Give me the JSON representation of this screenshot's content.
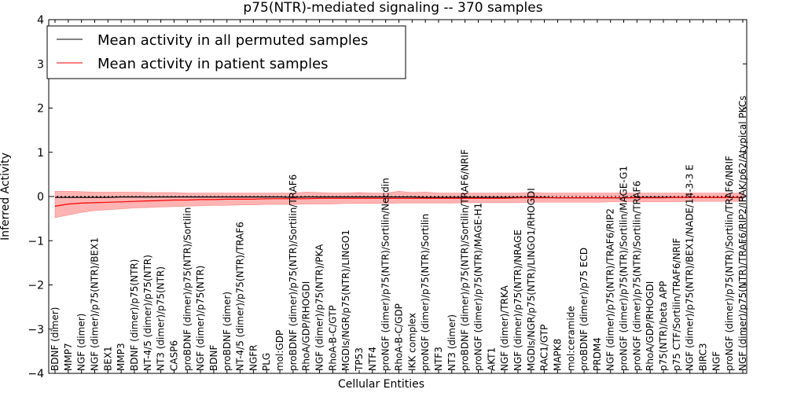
{
  "chart_data": {
    "type": "line",
    "title": "p75(NTR)-mediated signaling -- 370 samples",
    "xlabel": "Cellular Entities",
    "ylabel": "Inferred Activity",
    "ylim": [
      -4,
      4
    ],
    "yticks": [
      -4,
      -3,
      -2,
      -1,
      0,
      1,
      2,
      3,
      4
    ],
    "reference_line": 0,
    "legend_position": "top-left",
    "categories": [
      "BDNF (dimer)",
      "MMP7",
      "NGF (dimer)",
      "NGF (dimer)/p75(NTR)/BEX1",
      "BEX1",
      "MMP3",
      "BDNF (dimer)/p75(NTR)",
      "NT-4/5 (dimer)/p75(NTR)",
      "NT3 (dimer)/p75(NTR)",
      "CASP6",
      "proBDNF (dimer)/p75(NTR)/Sortilin",
      "NGF (dimer)/p75(NTR)",
      "BDNF",
      "proBDNF (dimer)",
      "NT-4/5 (dimer)/p75(NTR)/TRAF6",
      "NGFR",
      "PLG",
      "mol:GDP",
      "proBDNF (dimer)/p75(NTR)/Sortilin/TRAF6",
      "RhoA/GDP/RHOGDI",
      "NGF (dimer)/p75(NTR)/PKA",
      "RhoA-B-C/GTP",
      "MGDIs/NGR/p75(NTR)/LINGO1",
      "TP53",
      "NTF4",
      "proNGF (dimer)/p75(NTR)/Sortilin/Necdin",
      "RhoA-B-C/GDP",
      "IKK complex",
      "proNGF (dimer)/p75(NTR)/Sortilin",
      "NTF3",
      "NT3 (dimer)",
      "proBDNF (dimer)/p75(NTR)/Sortilin/TRAF6/NRIF",
      "proNGF (dimer)/p75(NTR)/MAGE-H1",
      "AKT1",
      "NGF (dimer)/TRKA",
      "NGF (dimer)/p75(NTR)/NRAGE",
      "MGDIs/NGR/p75(NTR)/LINGO1/RHOGDI",
      "RAC1/GTP",
      "MAPK8",
      "mol:ceramide",
      "proBDNF (dimer)/p75 ECD",
      "PRDM4",
      "NGF (dimer)/p75(NTR)/TRAF6/RIP2",
      "proNGF (dimer)/p75(NTR)/Sortilin/MAGE-G1",
      "proNGF (dimer)/p75(NTR)/Sortilin/TRAF6",
      "RhoA/GDP/RHOGDI",
      "p75(NTR)/beta APP",
      "p75 CTF/Sortilin/TRAF6/NRIF",
      "NGF (dimer)/p75(NTR)/BEX1/NADE/14-3-3 E",
      "BIRC3",
      "NGF",
      "proNGF (dimer)/p75(NTR)/Sortilin/TRAF6/NRIF",
      "NGF (dimer)/p75(NTR)/TRAF6/RIP2/IRAK/p62/Atypical PKCs"
    ],
    "series": [
      {
        "name": "Mean activity in all permuted samples",
        "color": "#000000",
        "values": [
          -0.02,
          -0.02,
          -0.02,
          -0.02,
          -0.02,
          -0.01,
          -0.01,
          -0.01,
          -0.01,
          -0.01,
          -0.01,
          -0.01,
          -0.01,
          -0.01,
          -0.01,
          -0.01,
          -0.01,
          -0.01,
          -0.02,
          -0.01,
          -0.01,
          -0.01,
          -0.01,
          -0.01,
          -0.01,
          -0.01,
          -0.01,
          -0.01,
          -0.02,
          -0.02,
          -0.02,
          -0.02,
          -0.02,
          -0.02,
          -0.02,
          -0.02,
          -0.02,
          -0.02,
          -0.03,
          -0.03,
          -0.03,
          -0.03,
          -0.03,
          -0.03,
          -0.02,
          -0.02,
          -0.02,
          -0.02,
          -0.02,
          -0.02,
          -0.02,
          -0.02,
          -0.02
        ]
      },
      {
        "name": "Mean activity in patient samples",
        "color": "#ff0000",
        "band_color": "#ff9999",
        "values": [
          -0.22,
          -0.17,
          -0.15,
          -0.14,
          -0.13,
          -0.12,
          -0.11,
          -0.1,
          -0.09,
          -0.08,
          -0.08,
          -0.07,
          -0.07,
          -0.06,
          -0.06,
          -0.06,
          -0.05,
          -0.05,
          -0.05,
          -0.05,
          -0.04,
          -0.04,
          -0.04,
          -0.04,
          -0.04,
          -0.04,
          -0.04,
          -0.04,
          -0.04,
          -0.04,
          -0.04,
          -0.04,
          -0.04,
          -0.04,
          -0.04,
          -0.03,
          -0.03,
          -0.03,
          -0.03,
          -0.03,
          -0.03,
          -0.03,
          -0.03,
          -0.03,
          -0.03,
          -0.03,
          -0.03,
          -0.02,
          -0.02,
          -0.02,
          -0.02,
          -0.02,
          -0.02
        ],
        "upper": [
          0.12,
          0.12,
          0.11,
          0.1,
          0.1,
          0.1,
          0.1,
          0.09,
          0.09,
          0.09,
          0.08,
          0.08,
          0.08,
          0.08,
          0.08,
          0.08,
          0.08,
          0.08,
          0.08,
          0.1,
          0.09,
          0.08,
          0.08,
          0.09,
          0.08,
          0.08,
          0.12,
          0.09,
          0.1,
          0.08,
          0.08,
          0.08,
          0.08,
          0.08,
          0.08,
          0.08,
          0.09,
          0.08,
          0.08,
          0.08,
          0.08,
          0.08,
          0.08,
          0.08,
          0.08,
          0.08,
          0.08,
          0.08,
          0.08,
          0.08,
          0.08,
          0.08,
          0.08
        ],
        "lower": [
          -0.48,
          -0.42,
          -0.36,
          -0.32,
          -0.3,
          -0.28,
          -0.26,
          -0.25,
          -0.24,
          -0.23,
          -0.22,
          -0.21,
          -0.2,
          -0.2,
          -0.19,
          -0.19,
          -0.18,
          -0.18,
          -0.18,
          -0.17,
          -0.17,
          -0.17,
          -0.16,
          -0.16,
          -0.16,
          -0.16,
          -0.15,
          -0.15,
          -0.15,
          -0.15,
          -0.15,
          -0.14,
          -0.14,
          -0.14,
          -0.14,
          -0.14,
          -0.13,
          -0.13,
          -0.13,
          -0.13,
          -0.13,
          -0.13,
          -0.12,
          -0.12,
          -0.12,
          -0.12,
          -0.12,
          -0.12,
          -0.11,
          -0.11,
          -0.11,
          -0.11,
          -0.11
        ]
      }
    ]
  }
}
